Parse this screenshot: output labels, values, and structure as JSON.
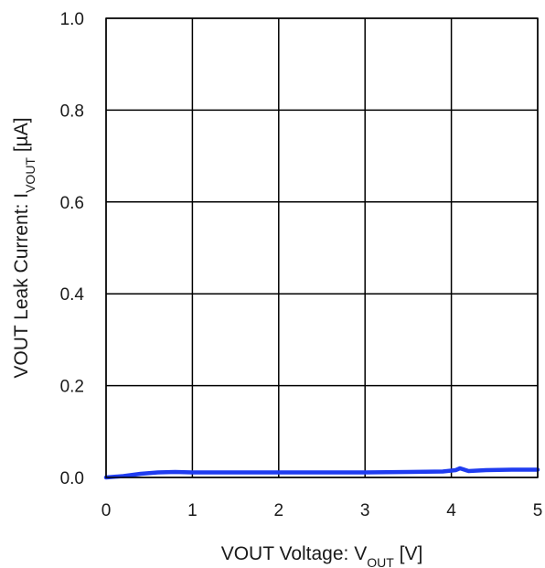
{
  "chart_data": {
    "type": "line",
    "xlabel": {
      "main": "VOUT Voltage: V",
      "sub": "OUT",
      "unit": " [V]"
    },
    "ylabel": {
      "main": "VOUT Leak Current: I",
      "sub": "VOUT",
      "unit": " [µA]"
    },
    "xlim": [
      0,
      5
    ],
    "ylim": [
      0,
      1.0
    ],
    "x_ticks": [
      "0",
      "1",
      "2",
      "3",
      "4",
      "5"
    ],
    "y_ticks": [
      "0.0",
      "0.2",
      "0.4",
      "0.6",
      "0.8",
      "1.0"
    ],
    "grid": true,
    "line_color": "#1f3cf0",
    "series": [
      {
        "x": [
          0,
          0.2,
          0.4,
          0.6,
          0.8,
          1.0,
          1.5,
          2.0,
          2.5,
          3.0,
          3.5,
          3.9,
          4.05,
          4.1,
          4.2,
          4.4,
          4.7,
          5.0
        ],
        "values": [
          0.0,
          0.003,
          0.008,
          0.011,
          0.012,
          0.011,
          0.011,
          0.011,
          0.011,
          0.011,
          0.012,
          0.013,
          0.016,
          0.02,
          0.014,
          0.016,
          0.017,
          0.017
        ]
      }
    ]
  }
}
